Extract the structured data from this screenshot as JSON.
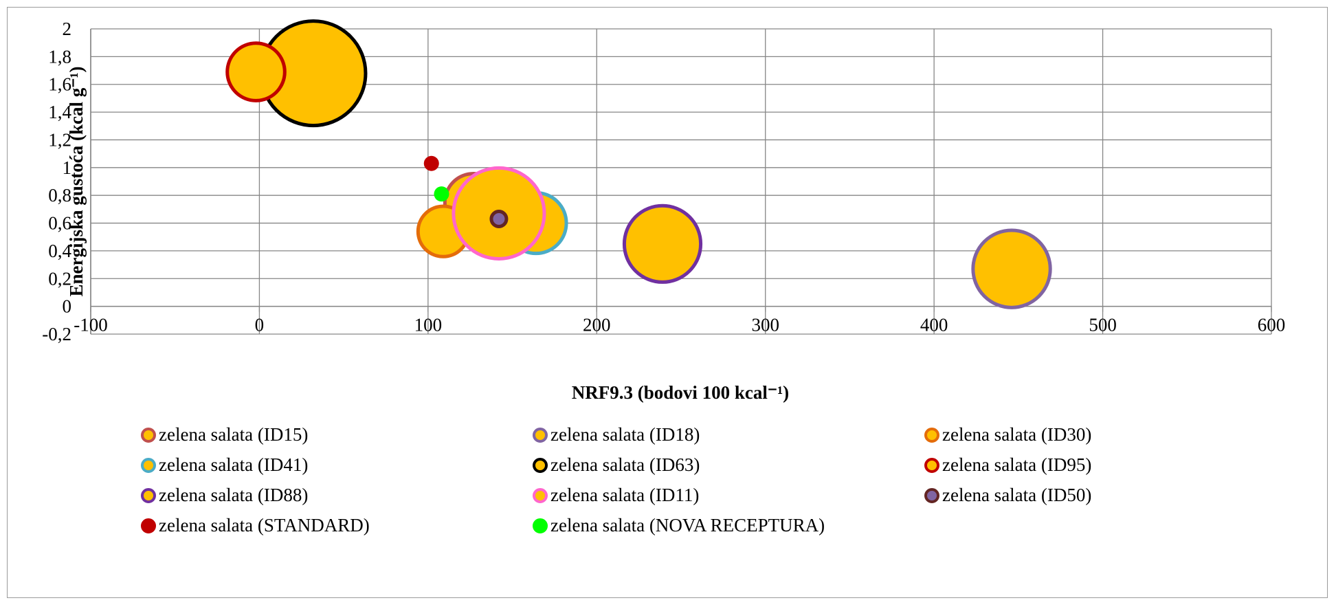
{
  "chart_data": {
    "type": "bubble",
    "xlabel": "NRF9.3 (bodovi 100 kcal⁻¹)",
    "ylabel": "Energijska gustoća (kcal g⁻¹)",
    "xlim": [
      -100,
      600
    ],
    "ylim": [
      -0.2,
      2
    ],
    "x_ticks": [
      "-100",
      "0",
      "100",
      "200",
      "300",
      "400",
      "500",
      "600"
    ],
    "y_ticks": [
      "-0,2",
      "0",
      "0,2",
      "0,4",
      "0,6",
      "0,8",
      "1",
      "1,2",
      "1,4",
      "1,6",
      "1,8",
      "2"
    ],
    "grid": true,
    "legend_position": "bottom",
    "series": [
      {
        "name": "zelena salata (ID15)",
        "x": 127,
        "y": 0.75,
        "size": 2.6,
        "fill": "#FFC000",
        "border": "#C0504D"
      },
      {
        "name": "zelena salata (ID18)",
        "x": 446,
        "y": 0.27,
        "size": 4.7,
        "fill": "#FFC000",
        "border": "#8064A2"
      },
      {
        "name": "zelena salata (ID30)",
        "x": 109,
        "y": 0.54,
        "size": 2.0,
        "fill": "#FFC000",
        "border": "#E46C0A"
      },
      {
        "name": "zelena salata (ID41)",
        "x": 164,
        "y": 0.6,
        "size": 2.9,
        "fill": "#FFC000",
        "border": "#4BACC6"
      },
      {
        "name": "zelena salata (ID63)",
        "x": 32,
        "y": 1.68,
        "size": 8.6,
        "fill": "#FFC000",
        "border": "#000000"
      },
      {
        "name": "zelena salata (ID95)",
        "x": -2,
        "y": 1.69,
        "size": 2.6,
        "fill": "#FFC000",
        "border": "#C00000"
      },
      {
        "name": "zelena salata (ID88)",
        "x": 239,
        "y": 0.45,
        "size": 4.6,
        "fill": "#FFC000",
        "border": "#7030A0"
      },
      {
        "name": "zelena salata (ID11)",
        "x": 142,
        "y": 0.67,
        "size": 6.5,
        "fill": "#FFC000",
        "border": "#FF66CC"
      },
      {
        "name": "zelena salata (ID50)",
        "x": 142,
        "y": 0.63,
        "size": 0.09,
        "fill": "#8064A2",
        "border": "#632523"
      },
      {
        "name": "zelena salata (STANDARD)",
        "x": 102,
        "y": 1.03,
        "size": 0.09,
        "fill": "#C00000",
        "border": "#C00000"
      },
      {
        "name": "zelena salata (NOVA RECEPTURA)",
        "x": 108,
        "y": 0.81,
        "size": 0.09,
        "fill": "#00FF00",
        "border": "#00FF00"
      }
    ]
  }
}
